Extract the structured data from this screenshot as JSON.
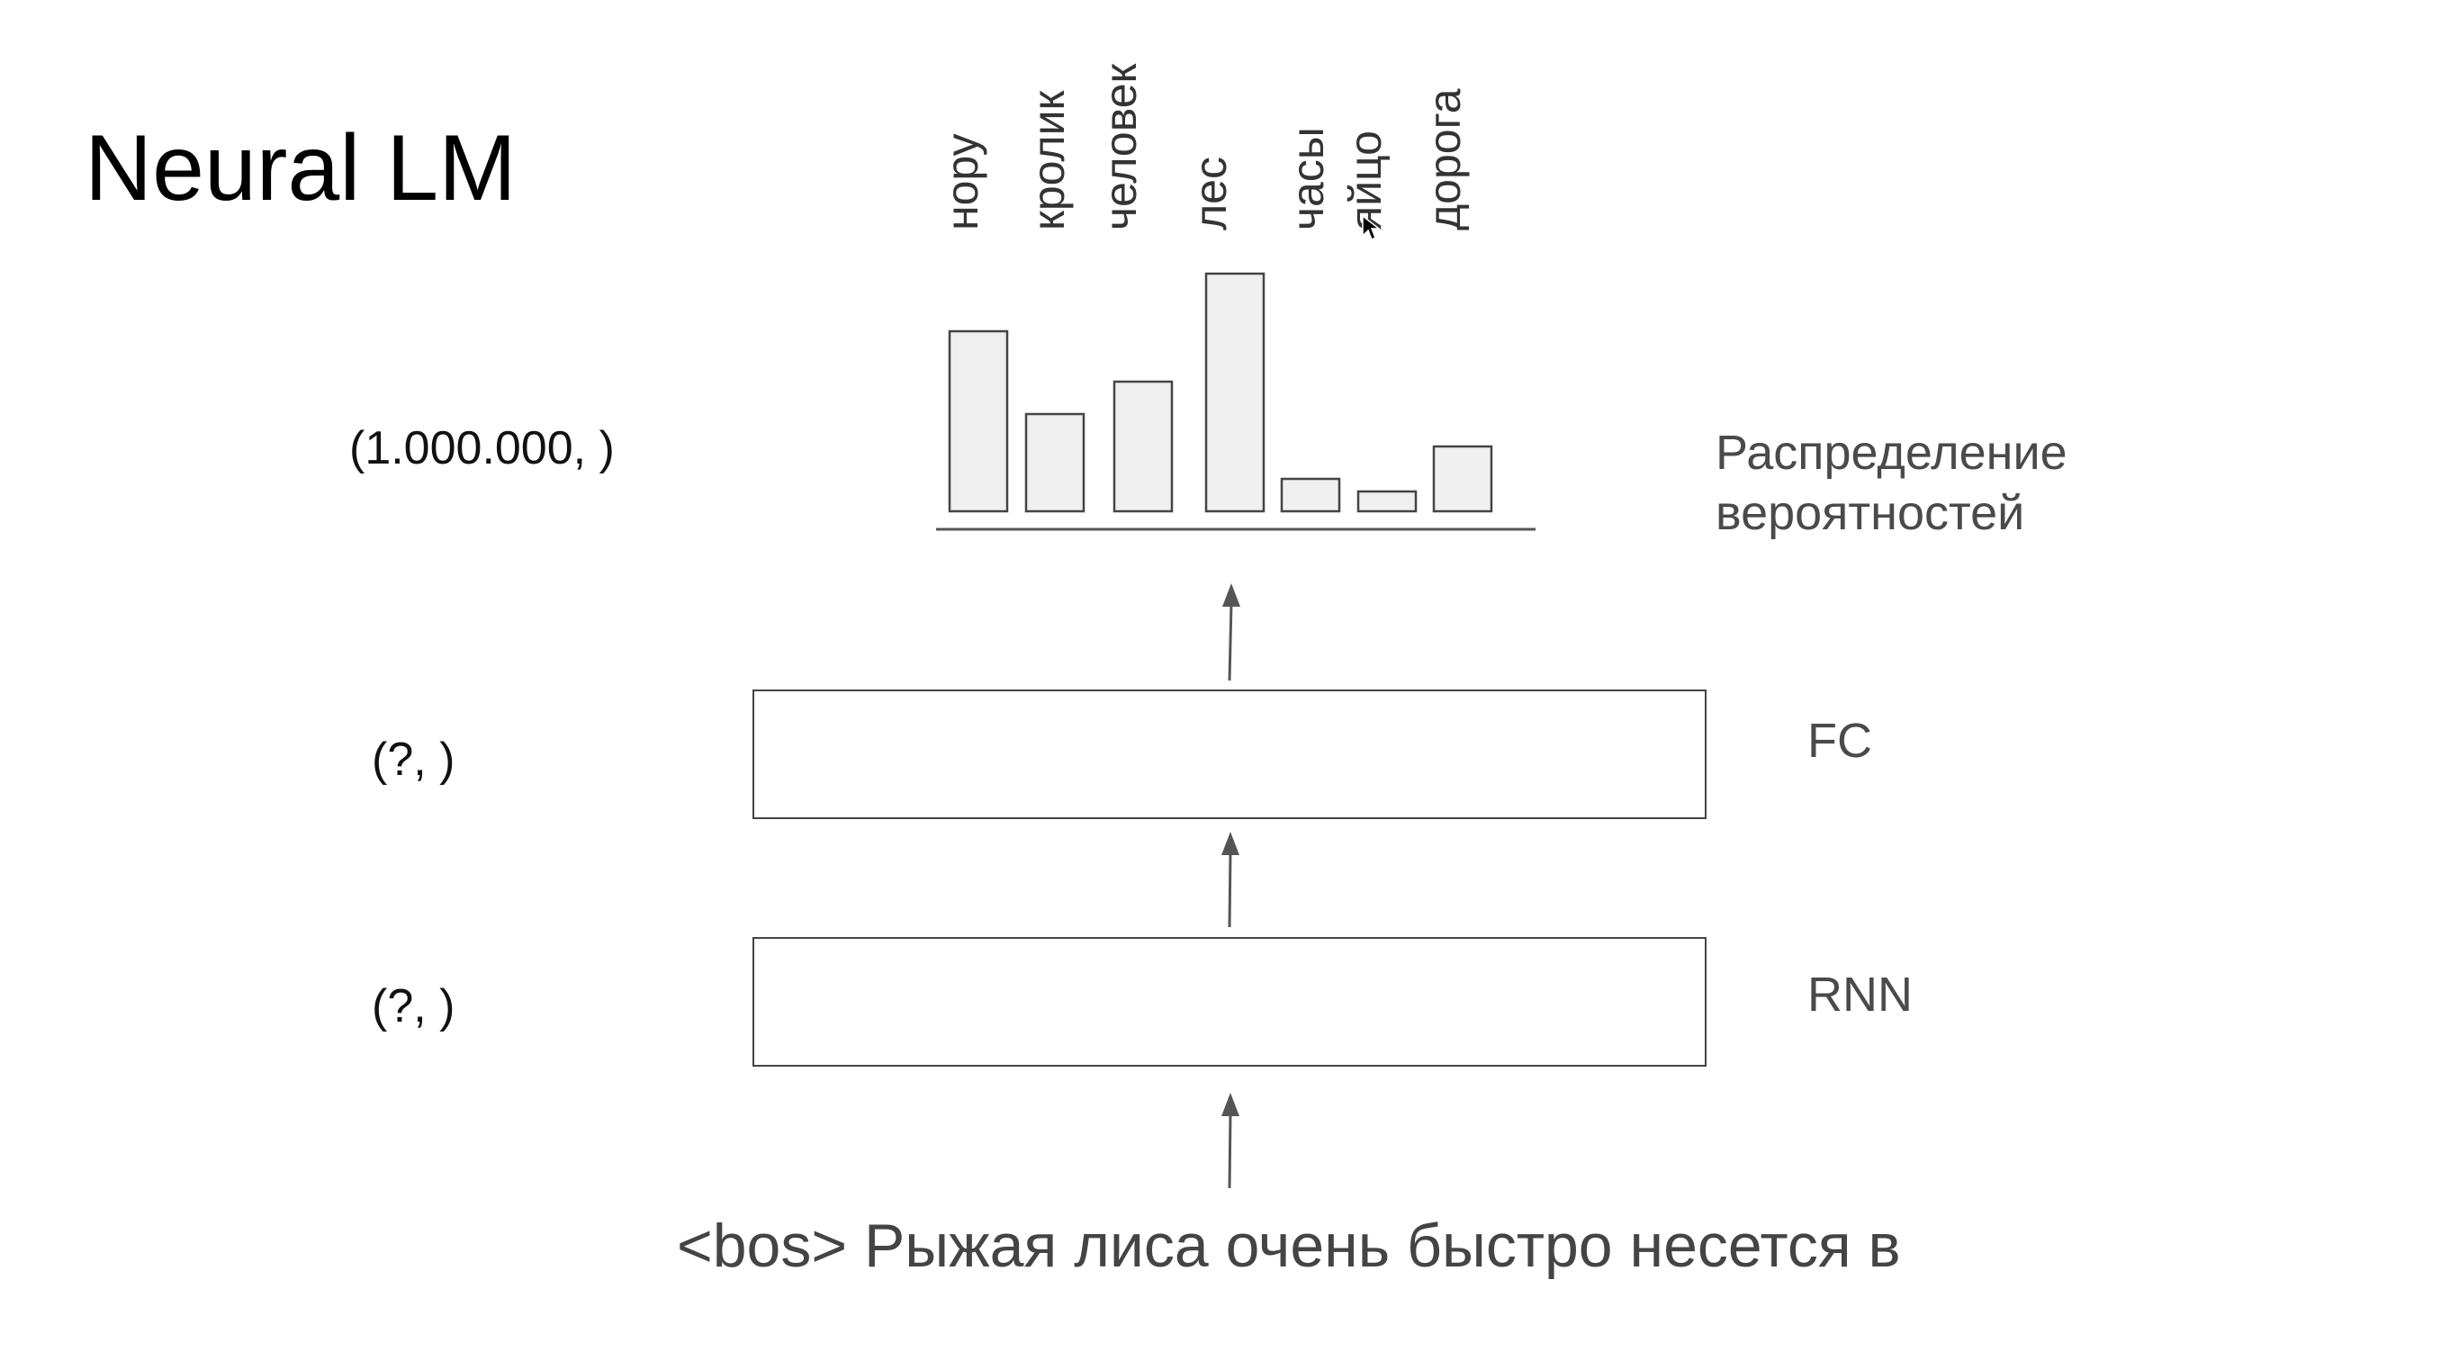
{
  "title": "Neural LM",
  "shape_labels": {
    "output": "(1.000.000, )",
    "fc": "(?, )",
    "rnn": "(?, )"
  },
  "distribution_label": [
    "Распределение",
    "вероятностей"
  ],
  "layers": {
    "fc": "FC",
    "rnn": "RNN"
  },
  "input_sentence": "<bos> Рыжая лиса очень быстро несется в",
  "chart_data": {
    "type": "bar",
    "categories": [
      "нору",
      "кролик",
      "человек",
      "лес",
      "часы",
      "яйцо",
      "дорога"
    ],
    "values": [
      1.0,
      0.54,
      0.72,
      1.32,
      0.18,
      0.11,
      0.36
    ],
    "title": "",
    "xlabel": "",
    "ylabel": "",
    "ylim": [
      0,
      1.4
    ]
  }
}
